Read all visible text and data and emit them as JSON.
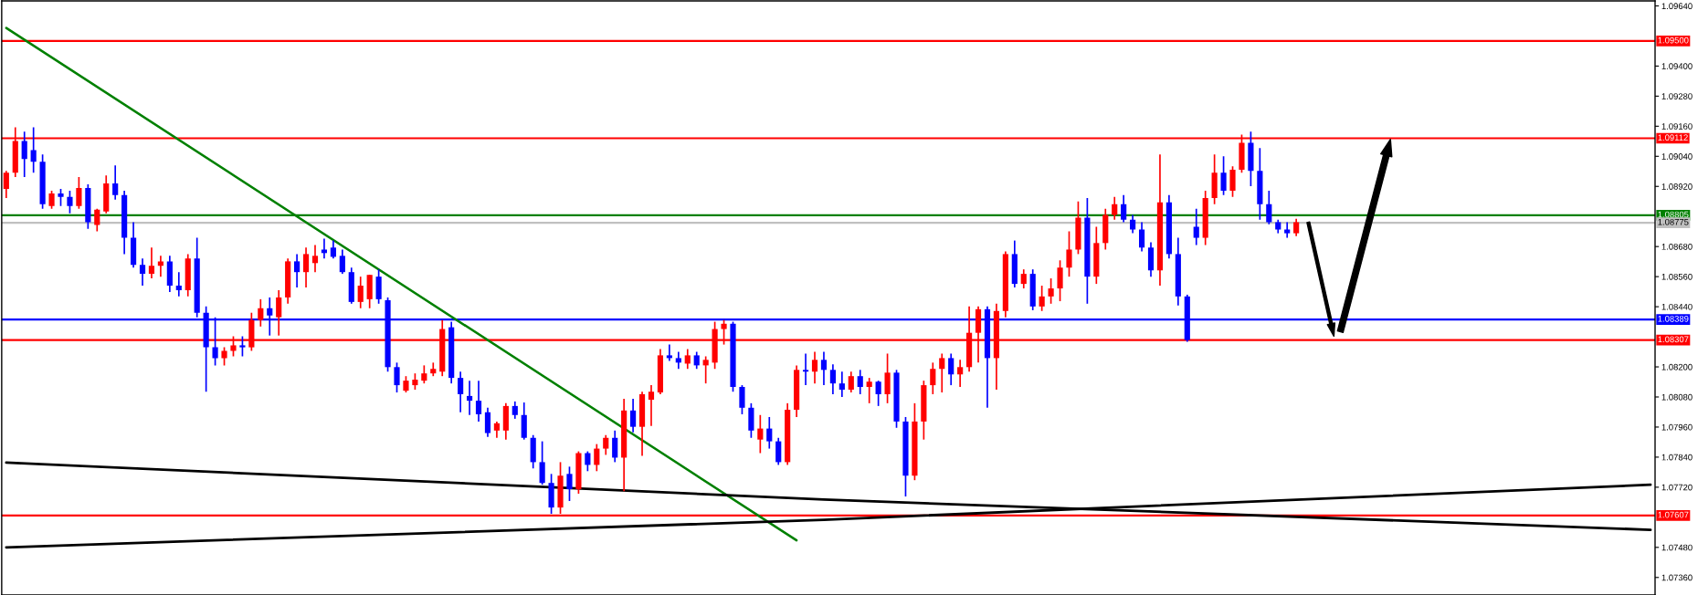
{
  "chart_data": {
    "type": "candlestick",
    "categories": [
      null,
      null,
      null,
      null,
      null,
      null,
      null,
      null,
      null,
      null,
      null,
      null,
      null,
      null,
      null,
      null,
      null,
      null,
      null,
      null,
      null,
      null,
      null,
      null,
      null,
      null,
      null,
      null,
      null,
      null,
      null,
      null,
      null,
      null,
      null,
      null,
      null,
      null,
      null,
      null,
      null,
      null,
      null,
      null,
      null,
      null,
      null,
      null,
      null,
      null,
      null,
      null,
      null,
      null,
      null,
      null,
      null,
      null,
      null,
      null,
      null,
      null,
      null,
      null,
      null,
      null,
      null,
      null,
      null,
      null,
      null,
      null,
      null,
      null,
      null,
      null,
      null,
      null,
      null,
      null,
      null,
      null,
      null,
      null,
      null,
      null,
      null,
      null,
      null,
      null,
      null,
      null,
      null,
      null,
      null,
      null,
      null,
      null,
      null,
      null,
      null,
      null,
      null,
      null,
      null,
      null,
      null,
      null,
      null,
      null,
      null,
      null,
      null,
      null,
      null,
      null,
      null,
      null,
      null,
      null,
      null,
      null,
      null,
      null,
      null,
      null,
      null,
      null,
      null,
      null,
      null,
      null,
      null,
      null,
      null,
      null,
      null,
      null,
      null,
      null,
      null,
      null,
      null,
      null,
      null,
      null,
      null,
      null,
      null,
      null,
      null,
      null,
      null,
      null,
      null,
      null,
      null,
      null,
      null,
      null,
      null,
      null,
      null,
      null,
      null,
      null,
      null,
      null,
      null,
      null,
      null,
      null,
      null,
      null,
      null,
      null,
      null,
      null,
      null,
      null,
      null,
      null
    ],
    "ohlc": [
      [
        1.0891,
        1.08982,
        1.08874,
        1.08975
      ],
      [
        1.08975,
        1.09156,
        1.08957,
        1.09101
      ],
      [
        1.09101,
        1.09138,
        1.08957,
        1.09029
      ],
      [
        1.09065,
        1.09156,
        1.08975,
        1.09018
      ],
      [
        1.09018,
        1.09047,
        1.08831,
        1.08849
      ],
      [
        1.08842,
        1.08903,
        1.08831,
        1.08892
      ],
      [
        1.08892,
        1.0891,
        1.08842,
        1.08878
      ],
      [
        1.08878,
        1.08903,
        1.08813,
        1.08842
      ],
      [
        1.08842,
        1.08957,
        1.08831,
        1.08914
      ],
      [
        1.08914,
        1.08928,
        1.08751,
        1.08777
      ],
      [
        1.08766,
        1.08831,
        1.08741,
        1.08827
      ],
      [
        1.0882,
        1.08964,
        1.08813,
        1.08932
      ],
      [
        1.08932,
        1.09004,
        1.08867,
        1.08885
      ],
      [
        1.08885,
        1.08903,
        1.0865,
        1.08715
      ],
      [
        1.08715,
        1.08777,
        1.08596,
        1.08607
      ],
      [
        1.08607,
        1.08632,
        1.08524,
        1.08571
      ],
      [
        1.08571,
        1.08676,
        1.08553,
        1.08603
      ],
      [
        1.08603,
        1.08643,
        1.0856,
        1.08621
      ],
      [
        1.08621,
        1.08643,
        1.08499,
        1.08524
      ],
      [
        1.08524,
        1.08578,
        1.08481,
        1.08506
      ],
      [
        1.08506,
        1.0865,
        1.08481,
        1.08632
      ],
      [
        1.08632,
        1.08715,
        1.08398,
        1.08416
      ],
      [
        1.08416,
        1.08441,
        1.08101,
        1.08278
      ],
      [
        1.08278,
        1.08398,
        1.08206,
        1.08235
      ],
      [
        1.08235,
        1.08278,
        1.08206,
        1.08264
      ],
      [
        1.08264,
        1.08322,
        1.08242,
        1.08286
      ],
      [
        1.08286,
        1.08322,
        1.08242,
        1.08278
      ],
      [
        1.08278,
        1.08416,
        1.08264,
        1.08387
      ],
      [
        1.08387,
        1.0847,
        1.08361,
        1.08434
      ],
      [
        1.08434,
        1.08477,
        1.08325,
        1.08405
      ],
      [
        1.08398,
        1.08506,
        1.08325,
        1.08477
      ],
      [
        1.08477,
        1.08632,
        1.08452,
        1.08621
      ],
      [
        1.08621,
        1.0865,
        1.08517,
        1.08578
      ],
      [
        1.08578,
        1.08676,
        1.08517,
        1.0865
      ],
      [
        1.08614,
        1.08686,
        1.08578,
        1.08643
      ],
      [
        1.08668,
        1.08712,
        1.08632,
        1.08654
      ],
      [
        1.08676,
        1.08704,
        1.08632,
        1.08639
      ],
      [
        1.08643,
        1.08668,
        1.08571,
        1.08578
      ],
      [
        1.08578,
        1.08596,
        1.08452,
        1.08459
      ],
      [
        1.08459,
        1.0856,
        1.08434,
        1.08524
      ],
      [
        1.0847,
        1.08567,
        1.08434,
        1.08567
      ],
      [
        1.0856,
        1.08589,
        1.08452,
        1.0847
      ],
      [
        1.08466,
        1.08477,
        1.08181,
        1.08199
      ],
      [
        1.08199,
        1.08217,
        1.08098,
        1.08127
      ],
      [
        1.08105,
        1.08163,
        1.08098,
        1.08145
      ],
      [
        1.08127,
        1.08174,
        1.08109,
        1.08149
      ],
      [
        1.08145,
        1.08206,
        1.08134,
        1.08174
      ],
      [
        1.08174,
        1.08217,
        1.08163,
        1.08192
      ],
      [
        1.08181,
        1.08387,
        1.08163,
        1.08351
      ],
      [
        1.08358,
        1.0838,
        1.08134,
        1.08156
      ],
      [
        1.08156,
        1.08181,
        1.08019,
        1.08091
      ],
      [
        1.08084,
        1.08145,
        1.08008,
        1.08065
      ],
      [
        1.08065,
        1.08145,
        1.07982,
        1.08011
      ],
      [
        1.08019,
        1.08037,
        1.07921,
        1.07936
      ],
      [
        1.07946,
        1.07982,
        1.07917,
        1.07975
      ],
      [
        1.07946,
        1.08055,
        1.0791,
        1.08044
      ],
      [
        1.08044,
        1.08062,
        1.07993,
        1.08008
      ],
      [
        1.08008,
        1.08058,
        1.0791,
        1.07917
      ],
      [
        1.07917,
        1.07928,
        1.07795,
        1.0782
      ],
      [
        1.0782,
        1.07903,
        1.0773,
        1.07737
      ],
      [
        1.07737,
        1.07773,
        1.07614,
        1.07639
      ],
      [
        1.07639,
        1.0782,
        1.07614,
        1.07766
      ],
      [
        1.07773,
        1.07802,
        1.07665,
        1.07712
      ],
      [
        1.07712,
        1.07863,
        1.07694,
        1.07856
      ],
      [
        1.07856,
        1.07863,
        1.07784,
        1.07809
      ],
      [
        1.07809,
        1.07892,
        1.07784,
        1.07874
      ],
      [
        1.07874,
        1.07928,
        1.07849,
        1.07917
      ],
      [
        1.07917,
        1.07946,
        1.0782,
        1.07838
      ],
      [
        1.07838,
        1.08073,
        1.07704,
        1.08026
      ],
      [
        1.08026,
        1.08073,
        1.07939,
        1.07961
      ],
      [
        1.07961,
        1.08101,
        1.07845,
        1.08091
      ],
      [
        1.08069,
        1.08127,
        1.07964,
        1.08101
      ],
      [
        1.08098,
        1.08271,
        1.08091,
        1.08246
      ],
      [
        1.08246,
        1.08289,
        1.08224,
        1.08235
      ],
      [
        1.08235,
        1.0826,
        1.08192,
        1.08217
      ],
      [
        1.08213,
        1.08271,
        1.08192,
        1.08246
      ],
      [
        1.08246,
        1.0826,
        1.08192,
        1.08206
      ],
      [
        1.08206,
        1.08242,
        1.08134,
        1.08228
      ],
      [
        1.08217,
        1.0838,
        1.08192,
        1.08351
      ],
      [
        1.08351,
        1.08387,
        1.08289,
        1.08372
      ],
      [
        1.08372,
        1.0838,
        1.08101,
        1.0812
      ],
      [
        1.0812,
        1.08127,
        1.08011,
        1.08037
      ],
      [
        1.08037,
        1.08055,
        1.07917,
        1.07946
      ],
      [
        1.0791,
        1.08008,
        1.07856,
        1.07954
      ],
      [
        1.07954,
        1.08,
        1.07874,
        1.07903
      ],
      [
        1.07903,
        1.07917,
        1.07809,
        1.0782
      ],
      [
        1.0782,
        1.08055,
        1.07809,
        1.08029
      ],
      [
        1.08029,
        1.08206,
        1.08,
        1.08188
      ],
      [
        1.08188,
        1.08253,
        1.08127,
        1.08181
      ],
      [
        1.08181,
        1.0826,
        1.08134,
        1.08228
      ],
      [
        1.08228,
        1.0826,
        1.08127,
        1.08188
      ],
      [
        1.08188,
        1.0821,
        1.08091,
        1.08134
      ],
      [
        1.08134,
        1.08181,
        1.0808,
        1.08109
      ],
      [
        1.08109,
        1.08181,
        1.08098,
        1.08163
      ],
      [
        1.08163,
        1.08188,
        1.08091,
        1.0812
      ],
      [
        1.0812,
        1.08156,
        1.08055,
        1.08141
      ],
      [
        1.08141,
        1.08145,
        1.08044,
        1.08091
      ],
      [
        1.08091,
        1.08253,
        1.08055,
        1.08177
      ],
      [
        1.08177,
        1.08188,
        1.07957,
        1.07982
      ],
      [
        1.07982,
        1.08,
        1.07683,
        1.07766
      ],
      [
        1.07766,
        1.08055,
        1.07748,
        1.07982
      ],
      [
        1.07982,
        1.08145,
        1.0791,
        1.08127
      ],
      [
        1.08127,
        1.08217,
        1.08091,
        1.08192
      ],
      [
        1.08192,
        1.08253,
        1.08098,
        1.08235
      ],
      [
        1.08235,
        1.08253,
        1.08127,
        1.0817
      ],
      [
        1.0817,
        1.08228,
        1.0812,
        1.08199
      ],
      [
        1.08199,
        1.08441,
        1.08181,
        1.08336
      ],
      [
        1.08336,
        1.08441,
        1.08217,
        1.0843
      ],
      [
        1.0843,
        1.08441,
        1.08037,
        1.08235
      ],
      [
        1.08235,
        1.08452,
        1.08109,
        1.08423
      ],
      [
        1.08423,
        1.08661,
        1.08398,
        1.0865
      ],
      [
        1.0865,
        1.08704,
        1.08517,
        1.08531
      ],
      [
        1.08531,
        1.08589,
        1.08513,
        1.08571
      ],
      [
        1.08571,
        1.08589,
        1.08426,
        1.08441
      ],
      [
        1.08441,
        1.08524,
        1.08423,
        1.08481
      ],
      [
        1.08481,
        1.08553,
        1.08452,
        1.08513
      ],
      [
        1.08513,
        1.08625,
        1.08462,
        1.08596
      ],
      [
        1.08596,
        1.08741,
        1.0856,
        1.08668
      ],
      [
        1.08668,
        1.0886,
        1.0865,
        1.08795
      ],
      [
        1.08795,
        1.08874,
        1.08452,
        1.0856
      ],
      [
        1.0856,
        1.08759,
        1.08531,
        1.08694
      ],
      [
        1.08694,
        1.08831,
        1.08668,
        1.08806
      ],
      [
        1.08806,
        1.08878,
        1.08787,
        1.08849
      ],
      [
        1.08849,
        1.08885,
        1.08777,
        1.08787
      ],
      [
        1.08787,
        1.08806,
        1.08733,
        1.08748
      ],
      [
        1.08748,
        1.08777,
        1.08661,
        1.08676
      ],
      [
        1.08676,
        1.08697,
        1.0856,
        1.08585
      ],
      [
        1.08585,
        1.09047,
        1.08524,
        1.08856
      ],
      [
        1.08856,
        1.08885,
        1.08632,
        1.0865
      ],
      [
        1.0865,
        1.08715,
        1.08445,
        1.08481
      ],
      [
        1.08481,
        1.08488,
        1.083,
        1.08307
      ],
      [
        1.08759,
        1.08831,
        1.08686,
        1.08715
      ],
      [
        1.08715,
        1.08903,
        1.08686,
        1.08874
      ],
      [
        1.08874,
        1.09047,
        1.08849,
        1.08975
      ],
      [
        1.08975,
        1.0904,
        1.08885,
        1.08903
      ],
      [
        1.08903,
        1.09,
        1.08878,
        1.08986
      ],
      [
        1.08986,
        1.09127,
        1.08975,
        1.09094
      ],
      [
        1.09094,
        1.09138,
        1.08921,
        1.08982
      ],
      [
        1.08982,
        1.09073,
        1.08787,
        1.08849
      ],
      [
        1.08849,
        1.08903,
        1.08769,
        1.08777
      ],
      [
        1.08777,
        1.08787,
        1.08733,
        1.08748
      ],
      [
        1.08748,
        1.08777,
        1.08715,
        1.08733
      ],
      [
        1.08733,
        1.08791,
        1.08722,
        1.08777
      ],
      null,
      null,
      null,
      null,
      null,
      null,
      null,
      null,
      null,
      null,
      null,
      null,
      null,
      null,
      null,
      null,
      null,
      null,
      null,
      null,
      null,
      null,
      null,
      null,
      null,
      null,
      null,
      null,
      null,
      null,
      null,
      null,
      null,
      null,
      null,
      null,
      null,
      null,
      null
    ],
    "colors": [
      "#ff0000",
      "#ff0000",
      "#0000ff",
      "#0000ff",
      "#0000ff",
      "#ff0000",
      "#0000ff",
      "#0000ff",
      "#ff0000",
      "#0000ff",
      "#ff0000",
      "#ff0000",
      "#0000ff",
      "#0000ff",
      "#0000ff",
      "#0000ff",
      "#ff0000",
      "#ff0000",
      "#0000ff",
      "#0000ff",
      "#ff0000",
      "#0000ff",
      "#0000ff",
      "#0000ff",
      "#ff0000",
      "#ff0000",
      "#0000ff",
      "#ff0000",
      "#ff0000",
      "#0000ff",
      "#ff0000",
      "#ff0000",
      "#0000ff",
      "#ff0000",
      "#ff0000",
      "#0000ff",
      "#0000ff",
      "#0000ff",
      "#0000ff",
      "#ff0000",
      "#ff0000",
      "#0000ff",
      "#0000ff",
      "#0000ff",
      "#ff0000",
      "#ff0000",
      "#ff0000",
      "#ff0000",
      "#ff0000",
      "#0000ff",
      "#0000ff",
      "#0000ff",
      "#0000ff",
      "#0000ff",
      "#ff0000",
      "#ff0000",
      "#0000ff",
      "#0000ff",
      "#0000ff",
      "#0000ff",
      "#0000ff",
      "#ff0000",
      "#0000ff",
      "#ff0000",
      "#0000ff",
      "#ff0000",
      "#ff0000",
      "#0000ff",
      "#ff0000",
      "#0000ff",
      "#ff0000",
      "#ff0000",
      "#ff0000",
      "#0000ff",
      "#0000ff",
      "#ff0000",
      "#0000ff",
      "#ff0000",
      "#ff0000",
      "#ff0000",
      "#0000ff",
      "#0000ff",
      "#0000ff",
      "#ff0000",
      "#0000ff",
      "#0000ff",
      "#ff0000",
      "#ff0000",
      "#0000ff",
      "#ff0000",
      "#0000ff",
      "#0000ff",
      "#0000ff",
      "#ff0000",
      "#0000ff",
      "#ff0000",
      "#0000ff",
      "#ff0000",
      "#0000ff",
      "#0000ff",
      "#ff0000",
      "#ff0000",
      "#ff0000",
      "#ff0000",
      "#0000ff",
      "#ff0000",
      "#ff0000",
      "#ff0000",
      "#0000ff",
      "#ff0000",
      "#ff0000",
      "#0000ff",
      "#ff0000",
      "#0000ff",
      "#ff0000",
      "#ff0000",
      "#ff0000",
      "#ff0000",
      "#ff0000",
      "#0000ff",
      "#ff0000",
      "#ff0000",
      "#ff0000",
      "#0000ff",
      "#0000ff",
      "#0000ff",
      "#0000ff",
      "#ff0000",
      "#0000ff",
      "#0000ff",
      "#0000ff",
      "#0000ff",
      "#ff0000",
      "#ff0000",
      "#0000ff",
      "#ff0000",
      "#ff0000",
      "#0000ff",
      "#0000ff",
      "#0000ff",
      "#0000ff",
      "#0000ff",
      "#ff0000",
      null,
      null,
      null,
      null,
      null,
      null,
      null,
      null,
      null,
      null,
      null,
      null,
      null,
      null,
      null,
      null,
      null,
      null,
      null,
      null,
      null,
      null,
      null,
      null,
      null,
      null,
      null,
      null,
      null,
      null,
      null,
      null,
      null,
      null,
      null,
      null,
      null,
      null,
      null
    ],
    "series": [
      {
        "type": "line",
        "color": "#008000",
        "values": [
          1.09552,
          null,
          null,
          null,
          null,
          null,
          null,
          null,
          null,
          null,
          null,
          null,
          null,
          null,
          null,
          null,
          null,
          null,
          null,
          null,
          null,
          null,
          null,
          null,
          null,
          null,
          null,
          null,
          null,
          null,
          null,
          null,
          null,
          null,
          null,
          null,
          null,
          null,
          null,
          null,
          null,
          null,
          null,
          null,
          null,
          null,
          null,
          null,
          null,
          null,
          null,
          null,
          null,
          null,
          null,
          null,
          null,
          null,
          null,
          null,
          null,
          null,
          null,
          null,
          null,
          null,
          null,
          null,
          null,
          null,
          null,
          null,
          null,
          null,
          null,
          null,
          null,
          null,
          null,
          null,
          null,
          null,
          null,
          null,
          null,
          null,
          null,
          1.07508,
          null,
          null,
          null,
          null,
          null,
          null,
          null,
          null,
          null,
          null,
          null,
          null,
          null,
          null,
          null,
          null,
          null,
          null,
          null,
          null,
          null,
          null,
          null,
          null,
          null,
          null,
          null,
          null,
          null,
          null,
          null,
          null,
          null,
          null,
          null,
          null,
          null,
          null,
          null,
          null,
          null,
          null,
          null,
          null,
          null,
          null,
          null,
          null,
          null,
          null,
          null,
          null,
          null,
          null,
          null,
          null,
          null,
          null,
          null,
          null,
          null,
          null,
          null,
          null,
          null,
          null,
          null,
          null,
          null,
          null,
          null,
          null,
          null,
          null,
          null,
          null,
          null,
          null,
          null,
          null,
          null,
          null,
          null,
          null,
          null,
          null,
          null,
          null,
          null,
          null,
          null,
          null,
          null,
          null
        ]
      },
      {
        "type": "line",
        "color": "#000000",
        "values": [
          1.07818,
          null,
          null,
          null,
          null,
          null,
          null,
          null,
          null,
          null,
          null,
          null,
          null,
          null,
          null,
          null,
          null,
          null,
          null,
          null,
          null,
          null,
          null,
          null,
          null,
          null,
          null,
          null,
          null,
          null,
          null,
          null,
          null,
          null,
          null,
          null,
          null,
          null,
          null,
          null,
          null,
          null,
          null,
          null,
          null,
          null,
          null,
          null,
          null,
          null,
          null,
          null,
          null,
          null,
          null,
          null,
          null,
          null,
          null,
          null,
          null,
          null,
          null,
          null,
          null,
          null,
          null,
          null,
          null,
          null,
          null,
          null,
          null,
          null,
          null,
          null,
          null,
          null,
          null,
          null,
          null,
          null,
          null,
          null,
          null,
          null,
          null,
          null,
          null,
          null,
          1.07671,
          null,
          null,
          null,
          null,
          null,
          null,
          null,
          null,
          null,
          null,
          null,
          null,
          null,
          null,
          null,
          null,
          null,
          null,
          null,
          null,
          null,
          null,
          null,
          null,
          null,
          null,
          null,
          null,
          null,
          null,
          null,
          null,
          null,
          null,
          null,
          null,
          null,
          null,
          null,
          null,
          null,
          null,
          null,
          null,
          null,
          null,
          null,
          null,
          null,
          null,
          null,
          null,
          null,
          null,
          null,
          null,
          null,
          null,
          null,
          null,
          null,
          null,
          null,
          null,
          null,
          null,
          null,
          null,
          null,
          null,
          null,
          null,
          null,
          null,
          null,
          null,
          null,
          null,
          null,
          null,
          null,
          null,
          null,
          null,
          null,
          null,
          null,
          null,
          null,
          null,
          1.0755
        ]
      },
      {
        "type": "line",
        "color": "#000000",
        "values": [
          1.0748,
          null,
          null,
          null,
          null,
          null,
          null,
          null,
          null,
          null,
          null,
          null,
          null,
          null,
          null,
          null,
          null,
          null,
          null,
          null,
          null,
          null,
          null,
          null,
          null,
          null,
          null,
          null,
          null,
          null,
          null,
          null,
          null,
          null,
          null,
          null,
          null,
          null,
          null,
          null,
          null,
          null,
          null,
          null,
          null,
          null,
          null,
          null,
          null,
          null,
          null,
          null,
          null,
          null,
          null,
          null,
          null,
          null,
          null,
          null,
          null,
          null,
          null,
          null,
          null,
          null,
          null,
          null,
          null,
          null,
          null,
          null,
          null,
          null,
          null,
          null,
          null,
          null,
          null,
          null,
          null,
          null,
          null,
          null,
          null,
          null,
          null,
          null,
          null,
          null,
          1.0759,
          null,
          null,
          null,
          null,
          null,
          null,
          null,
          null,
          null,
          null,
          null,
          null,
          null,
          null,
          null,
          null,
          null,
          null,
          null,
          null,
          null,
          null,
          null,
          null,
          null,
          null,
          null,
          null,
          null,
          null,
          null,
          null,
          null,
          null,
          null,
          null,
          null,
          null,
          null,
          null,
          null,
          null,
          null,
          null,
          null,
          null,
          null,
          null,
          null,
          null,
          null,
          null,
          null,
          null,
          null,
          null,
          null,
          null,
          null,
          null,
          null,
          null,
          null,
          null,
          null,
          null,
          null,
          null,
          null,
          null,
          null,
          null,
          null,
          null,
          null,
          null,
          null,
          null,
          null,
          null,
          null,
          null,
          null,
          null,
          null,
          null,
          null,
          null,
          null,
          null,
          1.0773
        ]
      }
    ],
    "ref_lines": [
      {
        "axis": "y",
        "value": 1.095,
        "label": "1.09500",
        "color": "#ff0000"
      },
      {
        "axis": "y",
        "value": 1.09112,
        "label": "1.09112",
        "color": "#ff0000"
      },
      {
        "axis": "y",
        "value": 1.08805,
        "label": "1.08805",
        "color": "#008000"
      },
      {
        "axis": "y",
        "value": 1.08775,
        "label": "1.08775",
        "color": "#c0c0c0"
      },
      {
        "axis": "y",
        "value": 1.08389,
        "label": "1.08389",
        "color": "#0000ff"
      },
      {
        "axis": "y",
        "value": 1.08307,
        "label": "1.08307",
        "color": "#ff0000"
      },
      {
        "axis": "y",
        "value": 1.07607,
        "label": "1.07607",
        "color": "#ff0000"
      }
    ],
    "ylim": [
      1.0729,
      1.0966
    ],
    "yticks": [
      {
        "value": 1.0964,
        "label": "1.09640"
      },
      {
        "value": 1.094,
        "label": "1.09400"
      },
      {
        "value": 1.0928,
        "label": "1.09280"
      },
      {
        "value": 1.0916,
        "label": "1.09160"
      },
      {
        "value": 1.0904,
        "label": "1.09040"
      },
      {
        "value": 1.0892,
        "label": "1.08920"
      },
      {
        "value": 1.0868,
        "label": "1.08680"
      },
      {
        "value": 1.0856,
        "label": "1.08560"
      },
      {
        "value": 1.0844,
        "label": "1.08440"
      },
      {
        "value": 1.082,
        "label": "1.08200"
      },
      {
        "value": 1.0808,
        "label": "1.08080"
      },
      {
        "value": 1.0796,
        "label": "1.07960"
      },
      {
        "value": 1.0784,
        "label": "1.07840"
      },
      {
        "value": 1.0772,
        "label": "1.07720"
      },
      {
        "value": 1.0748,
        "label": "1.07480"
      },
      {
        "value": 1.0736,
        "label": "1.07360"
      }
    ],
    "tick_labels": "y"
  }
}
